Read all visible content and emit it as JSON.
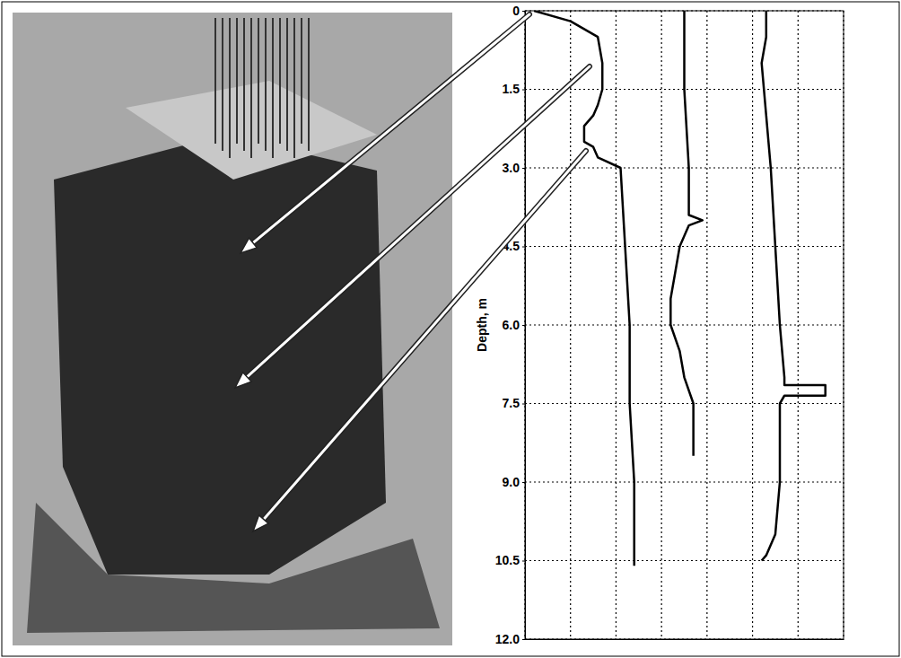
{
  "chart_data": {
    "type": "line",
    "ylabel": "Depth, m",
    "xlim": [
      0,
      7
    ],
    "xticks": [
      0,
      1,
      2,
      3,
      4,
      5,
      6,
      7
    ],
    "ylim": [
      0,
      12
    ],
    "yticks": [
      0,
      1.5,
      {
        "value": 3,
        "label": "3.0"
      },
      4.5,
      {
        "value": 6,
        "label": "6.0"
      },
      7.5,
      {
        "value": 9,
        "label": "9.0"
      },
      10.5,
      {
        "value": 12,
        "label": "12.0"
      }
    ],
    "grid": true,
    "tick_labels": "y",
    "color": "#000000",
    "series": [
      {
        "x": [
          0.2,
          1.0,
          1.6,
          1.7,
          1.7,
          1.6,
          1.5,
          1.3,
          1.3,
          1.5,
          1.6,
          2.1,
          2.2,
          2.3,
          2.3,
          2.4,
          2.4,
          2.4
        ],
        "values": [
          0,
          0.2,
          0.5,
          1.0,
          1.5,
          1.8,
          2.0,
          2.2,
          2.5,
          2.6,
          2.8,
          3.0,
          4.5,
          6.0,
          7.5,
          9.0,
          10.0,
          10.6
        ]
      },
      {
        "x": [
          3.5,
          3.5,
          3.5,
          3.6,
          3.6,
          3.9,
          3.6,
          3.4,
          3.3,
          3.2,
          3.2,
          3.4,
          3.5,
          3.7,
          3.7,
          3.7
        ],
        "values": [
          0,
          0.5,
          1.5,
          3.0,
          3.9,
          4.0,
          4.1,
          4.5,
          5.0,
          5.5,
          6.0,
          6.5,
          7.0,
          7.5,
          8.0,
          8.5
        ]
      },
      {
        "x": [
          5.3,
          5.3,
          5.2,
          5.3,
          5.4,
          5.5,
          5.6,
          5.7,
          5.7,
          6.6,
          6.6,
          5.7,
          5.6,
          5.6,
          5.5,
          5.3,
          5.2
        ],
        "values": [
          0,
          0.5,
          1.0,
          2.0,
          3.0,
          4.5,
          6.0,
          7.0,
          7.15,
          7.15,
          7.35,
          7.35,
          7.5,
          9.0,
          10.0,
          10.4,
          10.5
        ]
      }
    ]
  }
}
